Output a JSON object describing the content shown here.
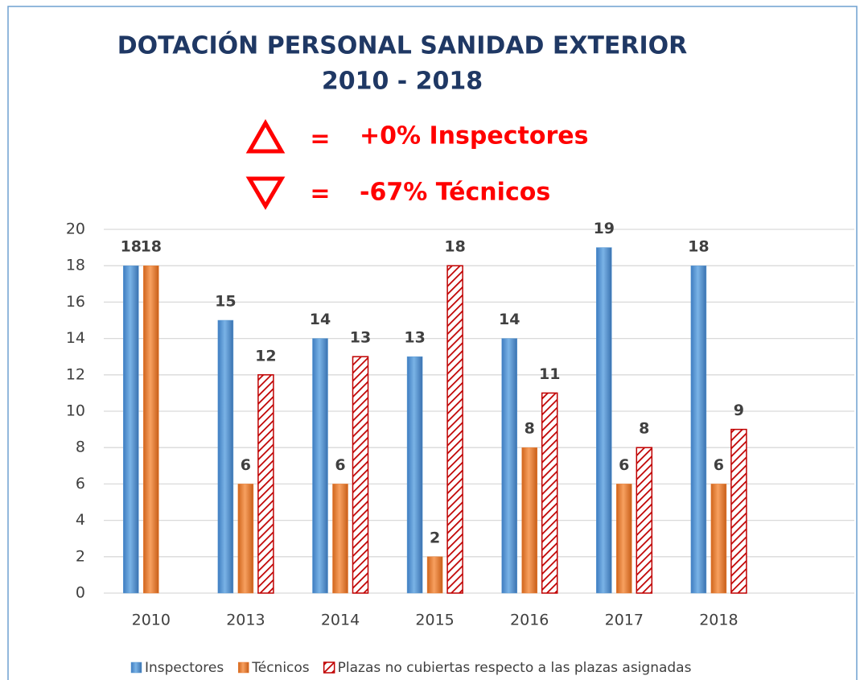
{
  "chart_data": {
    "type": "bar",
    "title": "DOTACIÓN PERSONAL SANIDAD EXTERIOR",
    "subtitle": "2010 - 2018",
    "annotations": [
      {
        "sign": "=",
        "text": "+0% Inspectores"
      },
      {
        "sign": "=",
        "text": "-67% Técnicos"
      }
    ],
    "categories": [
      "2010",
      "2013",
      "2014",
      "2015",
      "2016",
      "2017",
      "2018"
    ],
    "series": [
      {
        "name": "Inspectores",
        "color": "#5b9bd5",
        "values": [
          18,
          15,
          14,
          13,
          14,
          19,
          18
        ]
      },
      {
        "name": "Técnicos",
        "color": "#ed7d31",
        "values": [
          18,
          6,
          6,
          2,
          8,
          6,
          6
        ]
      },
      {
        "name": "Plazas no cubiertas respecto a las plazas asignadas",
        "color": "#c00000",
        "values": [
          null,
          12,
          13,
          18,
          11,
          8,
          9
        ]
      }
    ],
    "ylim": [
      0,
      20
    ],
    "yticks": [
      0,
      2,
      4,
      6,
      8,
      10,
      12,
      14,
      16,
      18,
      20
    ],
    "grid": true,
    "legend": "bottom"
  }
}
